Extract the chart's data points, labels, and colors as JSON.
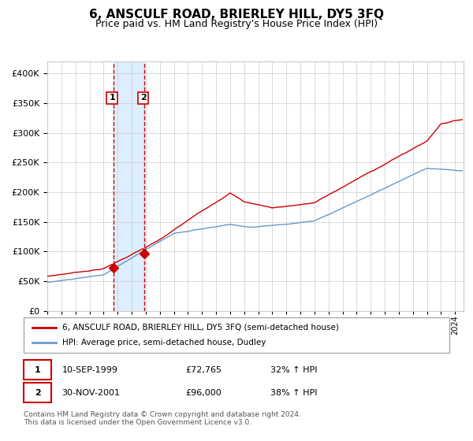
{
  "title": "6, ANSCULF ROAD, BRIERLEY HILL, DY5 3FQ",
  "subtitle": "Price paid vs. HM Land Registry's House Price Index (HPI)",
  "red_label": "6, ANSCULF ROAD, BRIERLEY HILL, DY5 3FQ (semi-detached house)",
  "blue_label": "HPI: Average price, semi-detached house, Dudley",
  "transaction1_date": "10-SEP-1999",
  "transaction1_price": 72765,
  "transaction1_pct": "32% ↑ HPI",
  "transaction2_date": "30-NOV-2001",
  "transaction2_price": 96000,
  "transaction2_pct": "38% ↑ HPI",
  "footer": "Contains HM Land Registry data © Crown copyright and database right 2024.\nThis data is licensed under the Open Government Licence v3.0.",
  "red_color": "#cc0000",
  "blue_color": "#6699cc",
  "shade_color": "#ddeeff",
  "dashed_color": "#cc0000",
  "background_color": "#ffffff",
  "grid_color": "#cccccc",
  "ylim": [
    0,
    420000
  ],
  "yticks": [
    0,
    50000,
    100000,
    150000,
    200000,
    250000,
    300000,
    350000,
    400000
  ],
  "x_start_year": 1995,
  "x_end_year": 2024,
  "transaction1_year": 1999.7,
  "transaction2_year": 2001.9
}
